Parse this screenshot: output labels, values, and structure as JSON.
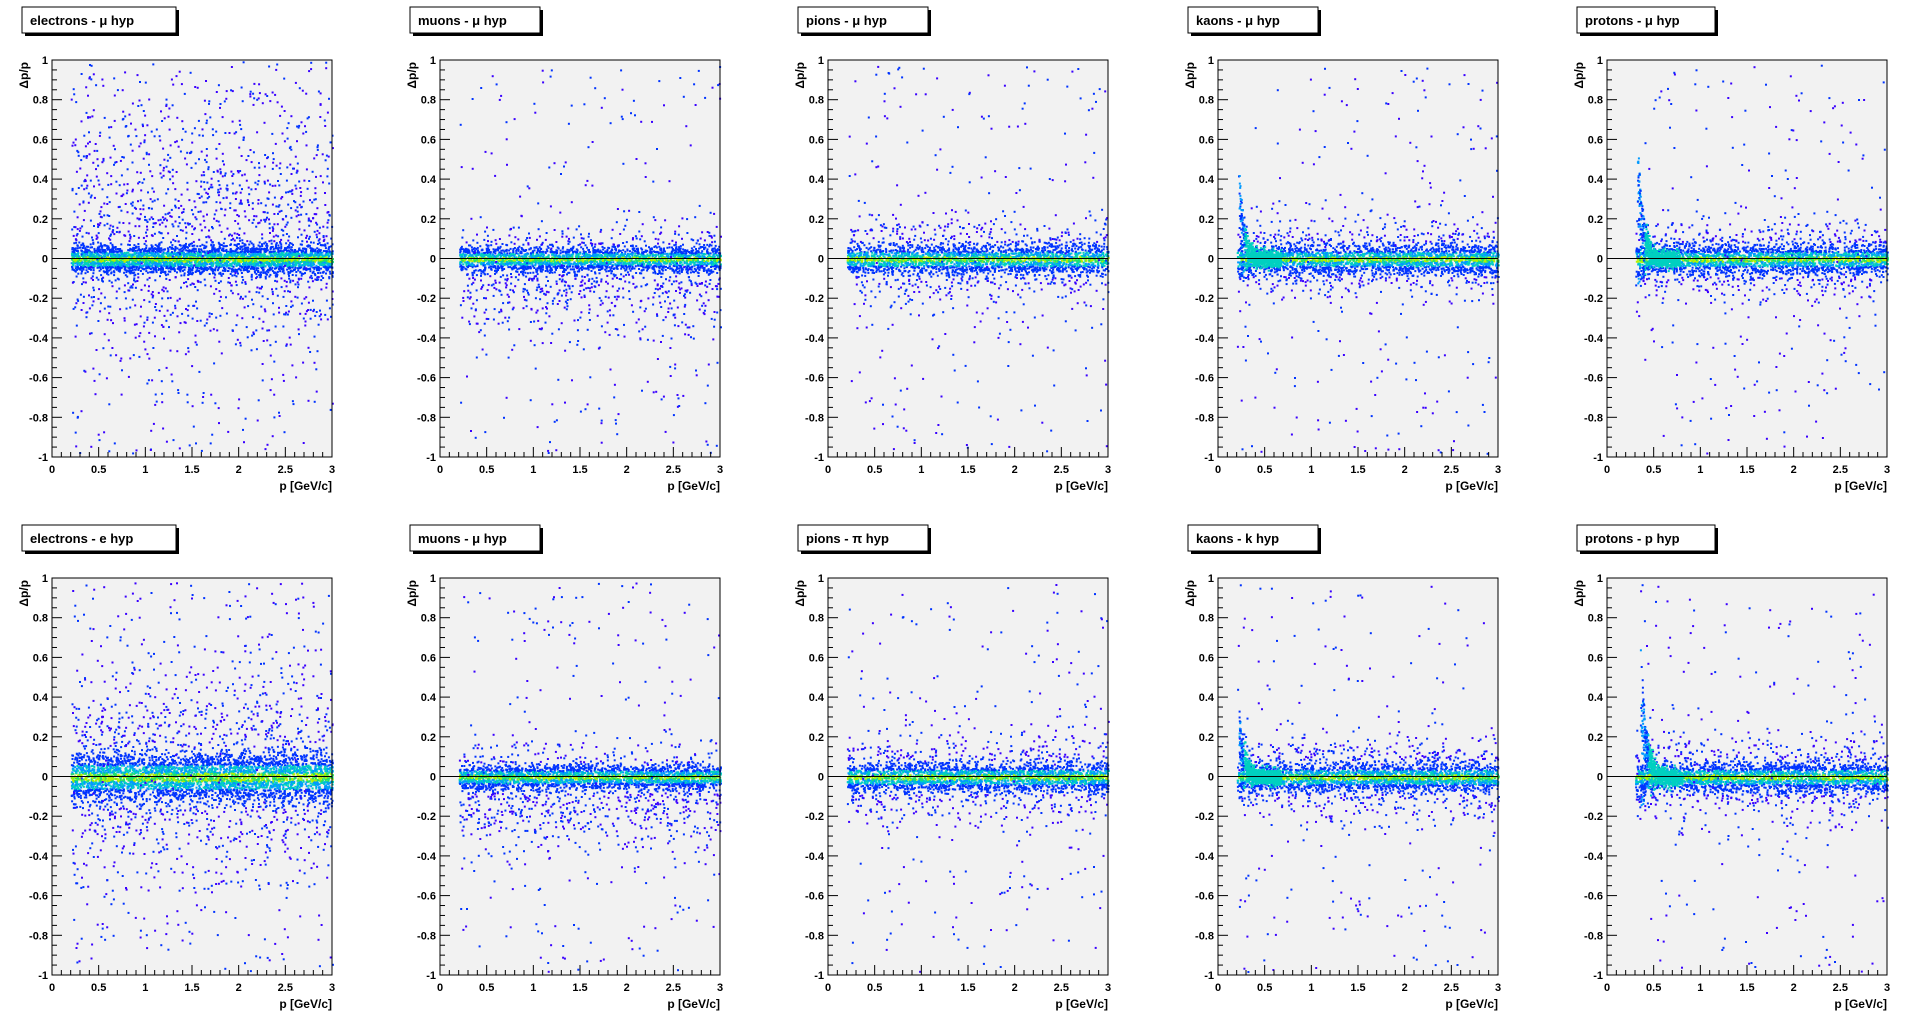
{
  "chart_data": [
    {
      "type": "scatter",
      "title": "electrons - μ hyp",
      "xlabel": "p [GeV/c]",
      "ylabel": "Δp/p",
      "xlim": [
        0,
        3
      ],
      "ylim": [
        -1,
        1
      ],
      "xticks": [
        "0",
        "0.5",
        "1",
        "1.5",
        "2",
        "2.5",
        "3"
      ],
      "yticks": [
        "-1",
        "-0.8",
        "-0.6",
        "-0.4",
        "-0.2",
        "0",
        "0.2",
        "0.4",
        "0.6",
        "0.8",
        "1"
      ],
      "x_start": 0.2,
      "core_width": 0.035,
      "spread_pos": 0.45,
      "spread_neg": 0.25,
      "tail_peak": 0,
      "tail_height": 0,
      "density": 0.9
    },
    {
      "type": "scatter",
      "title": "muons - μ hyp",
      "xlabel": "p [GeV/c]",
      "ylabel": "Δp/p",
      "xlim": [
        0,
        3
      ],
      "ylim": [
        -1,
        1
      ],
      "xticks": [
        "0",
        "0.5",
        "1",
        "1.5",
        "2",
        "2.5",
        "3"
      ],
      "yticks": [
        "-1",
        "-0.8",
        "-0.6",
        "-0.4",
        "-0.2",
        "0",
        "0.2",
        "0.4",
        "0.6",
        "0.8",
        "1"
      ],
      "x_start": 0.2,
      "core_width": 0.03,
      "spread_pos": 0.08,
      "spread_neg": 0.18,
      "tail_peak": 0,
      "tail_height": 0,
      "density": 0.6
    },
    {
      "type": "scatter",
      "title": "pions - μ hyp",
      "xlabel": "p [GeV/c]",
      "ylabel": "Δp/p",
      "xlim": [
        0,
        3
      ],
      "ylim": [
        -1,
        1
      ],
      "xticks": [
        "0",
        "0.5",
        "1",
        "1.5",
        "2",
        "2.5",
        "3"
      ],
      "yticks": [
        "-1",
        "-0.8",
        "-0.6",
        "-0.4",
        "-0.2",
        "0",
        "0.2",
        "0.4",
        "0.6",
        "0.8",
        "1"
      ],
      "x_start": 0.2,
      "core_width": 0.035,
      "spread_pos": 0.12,
      "spread_neg": 0.12,
      "tail_peak": 0,
      "tail_height": 0,
      "density": 0.55
    },
    {
      "type": "scatter",
      "title": "kaons - μ hyp",
      "xlabel": "p [GeV/c]",
      "ylabel": "Δp/p",
      "xlim": [
        0,
        3
      ],
      "ylim": [
        -1,
        1
      ],
      "xticks": [
        "0",
        "0.5",
        "1",
        "1.5",
        "2",
        "2.5",
        "3"
      ],
      "yticks": [
        "-1",
        "-0.8",
        "-0.6",
        "-0.4",
        "-0.2",
        "0",
        "0.2",
        "0.4",
        "0.6",
        "0.8",
        "1"
      ],
      "x_start": 0.2,
      "core_width": 0.035,
      "spread_pos": 0.1,
      "spread_neg": 0.1,
      "tail_peak": 0.22,
      "tail_height": 0.35,
      "density": 0.55
    },
    {
      "type": "scatter",
      "title": "protons - μ hyp",
      "xlabel": "p [GeV/c]",
      "ylabel": "Δp/p",
      "xlim": [
        0,
        3
      ],
      "ylim": [
        -1,
        1
      ],
      "xticks": [
        "0",
        "0.5",
        "1",
        "1.5",
        "2",
        "2.5",
        "3"
      ],
      "yticks": [
        "-1",
        "-0.8",
        "-0.6",
        "-0.4",
        "-0.2",
        "0",
        "0.2",
        "0.4",
        "0.6",
        "0.8",
        "1"
      ],
      "x_start": 0.3,
      "core_width": 0.035,
      "spread_pos": 0.1,
      "spread_neg": 0.1,
      "tail_peak": 0.32,
      "tail_height": 0.5,
      "density": 0.55
    },
    {
      "type": "scatter",
      "title": "electrons - e hyp",
      "xlabel": "p [GeV/c]",
      "ylabel": "Δp/p",
      "xlim": [
        0,
        3
      ],
      "ylim": [
        -1,
        1
      ],
      "xticks": [
        "0",
        "0.5",
        "1",
        "1.5",
        "2",
        "2.5",
        "3"
      ],
      "yticks": [
        "-1",
        "-0.8",
        "-0.6",
        "-0.4",
        "-0.2",
        "0",
        "0.2",
        "0.4",
        "0.6",
        "0.8",
        "1"
      ],
      "x_start": 0.2,
      "core_width": 0.06,
      "spread_pos": 0.3,
      "spread_neg": 0.25,
      "tail_peak": 0,
      "tail_height": 0,
      "density": 0.9
    },
    {
      "type": "scatter",
      "title": "muons - μ hyp",
      "xlabel": "p [GeV/c]",
      "ylabel": "Δp/p",
      "xlim": [
        0,
        3
      ],
      "ylim": [
        -1,
        1
      ],
      "xticks": [
        "0",
        "0.5",
        "1",
        "1.5",
        "2",
        "2.5",
        "3"
      ],
      "yticks": [
        "-1",
        "-0.8",
        "-0.6",
        "-0.4",
        "-0.2",
        "0",
        "0.2",
        "0.4",
        "0.6",
        "0.8",
        "1"
      ],
      "x_start": 0.2,
      "core_width": 0.03,
      "spread_pos": 0.08,
      "spread_neg": 0.18,
      "tail_peak": 0,
      "tail_height": 0,
      "density": 0.6
    },
    {
      "type": "scatter",
      "title": "pions - π hyp",
      "xlabel": "p [GeV/c]",
      "ylabel": "Δp/p",
      "xlim": [
        0,
        3
      ],
      "ylim": [
        -1,
        1
      ],
      "xticks": [
        "0",
        "0.5",
        "1",
        "1.5",
        "2",
        "2.5",
        "3"
      ],
      "yticks": [
        "-1",
        "-0.8",
        "-0.6",
        "-0.4",
        "-0.2",
        "0",
        "0.2",
        "0.4",
        "0.6",
        "0.8",
        "1"
      ],
      "x_start": 0.2,
      "core_width": 0.035,
      "spread_pos": 0.12,
      "spread_neg": 0.12,
      "tail_peak": 0,
      "tail_height": 0,
      "density": 0.55
    },
    {
      "type": "scatter",
      "title": "kaons - k hyp",
      "xlabel": "p [GeV/c]",
      "ylabel": "Δp/p",
      "xlim": [
        0,
        3
      ],
      "ylim": [
        -1,
        1
      ],
      "xticks": [
        "0",
        "0.5",
        "1",
        "1.5",
        "2",
        "2.5",
        "3"
      ],
      "yticks": [
        "-1",
        "-0.8",
        "-0.6",
        "-0.4",
        "-0.2",
        "0",
        "0.2",
        "0.4",
        "0.6",
        "0.8",
        "1"
      ],
      "x_start": 0.2,
      "core_width": 0.035,
      "spread_pos": 0.1,
      "spread_neg": 0.1,
      "tail_peak": 0.22,
      "tail_height": 0.3,
      "density": 0.55
    },
    {
      "type": "scatter",
      "title": "protons - p hyp",
      "xlabel": "p [GeV/c]",
      "ylabel": "Δp/p",
      "xlim": [
        0,
        3
      ],
      "ylim": [
        -1,
        1
      ],
      "xticks": [
        "0",
        "0.5",
        "1",
        "1.5",
        "2",
        "2.5",
        "3"
      ],
      "yticks": [
        "-1",
        "-0.8",
        "-0.6",
        "-0.4",
        "-0.2",
        "0",
        "0.2",
        "0.4",
        "0.6",
        "0.8",
        "1"
      ],
      "x_start": 0.3,
      "core_width": 0.035,
      "spread_pos": 0.1,
      "spread_neg": 0.1,
      "tail_peak": 0.35,
      "tail_height": 0.55,
      "density": 0.55
    }
  ],
  "colors": {
    "frame_bg": "#f2f2f2",
    "palette": [
      "#3a00ff",
      "#0033ff",
      "#0099ff",
      "#00d0c0",
      "#22e06a",
      "#b7f000",
      "#ffb000"
    ]
  }
}
